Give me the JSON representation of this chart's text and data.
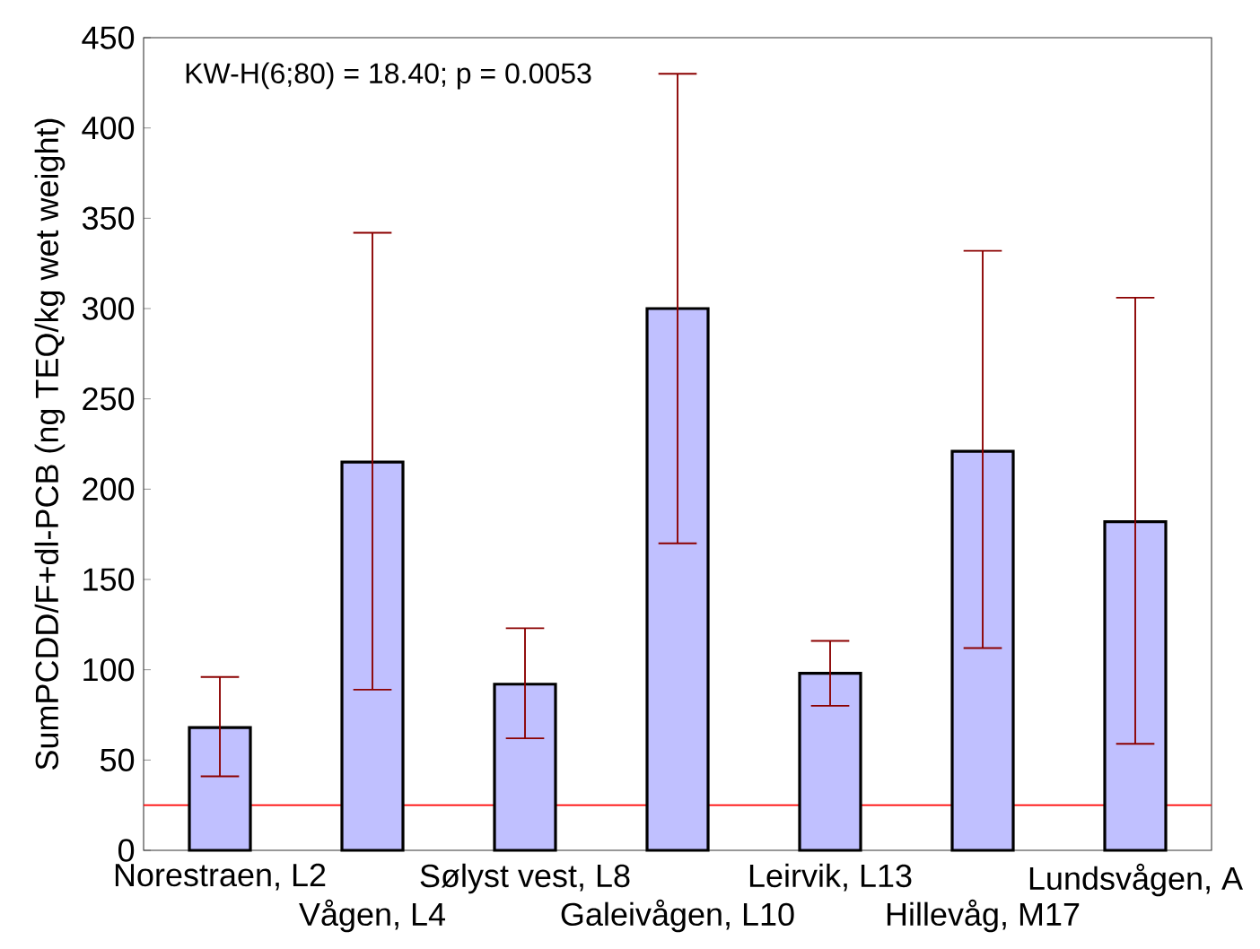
{
  "chart_data": {
    "type": "bar",
    "ylabel": "SumPCDD/F+dl-PCB (ng TEQ/kg wet weight)",
    "categories": [
      "Norestraen, L2",
      "Vågen, L4",
      "Sølyst vest, L8",
      "Galeivågen, L10",
      "Leirvik, L13",
      "Hillevåg, M17",
      "Lundsvågen, A"
    ],
    "values": [
      68,
      215,
      92,
      300,
      98,
      221,
      182
    ],
    "errors": [
      [
        41,
        96
      ],
      [
        89,
        342
      ],
      [
        62,
        123
      ],
      [
        170,
        430
      ],
      [
        80,
        116
      ],
      [
        112,
        332
      ],
      [
        59,
        306
      ]
    ],
    "color": "#c0c0ff",
    "ylim": [
      0,
      450
    ],
    "yticks": [
      0,
      50,
      100,
      150,
      200,
      250,
      300,
      350,
      400,
      450
    ],
    "ref_lines": [
      {
        "axis": "y",
        "value": 25,
        "color": "#ff0000"
      }
    ],
    "annotations": [
      "KW-H(6;80) = 18.40; p = 0.0053"
    ]
  }
}
